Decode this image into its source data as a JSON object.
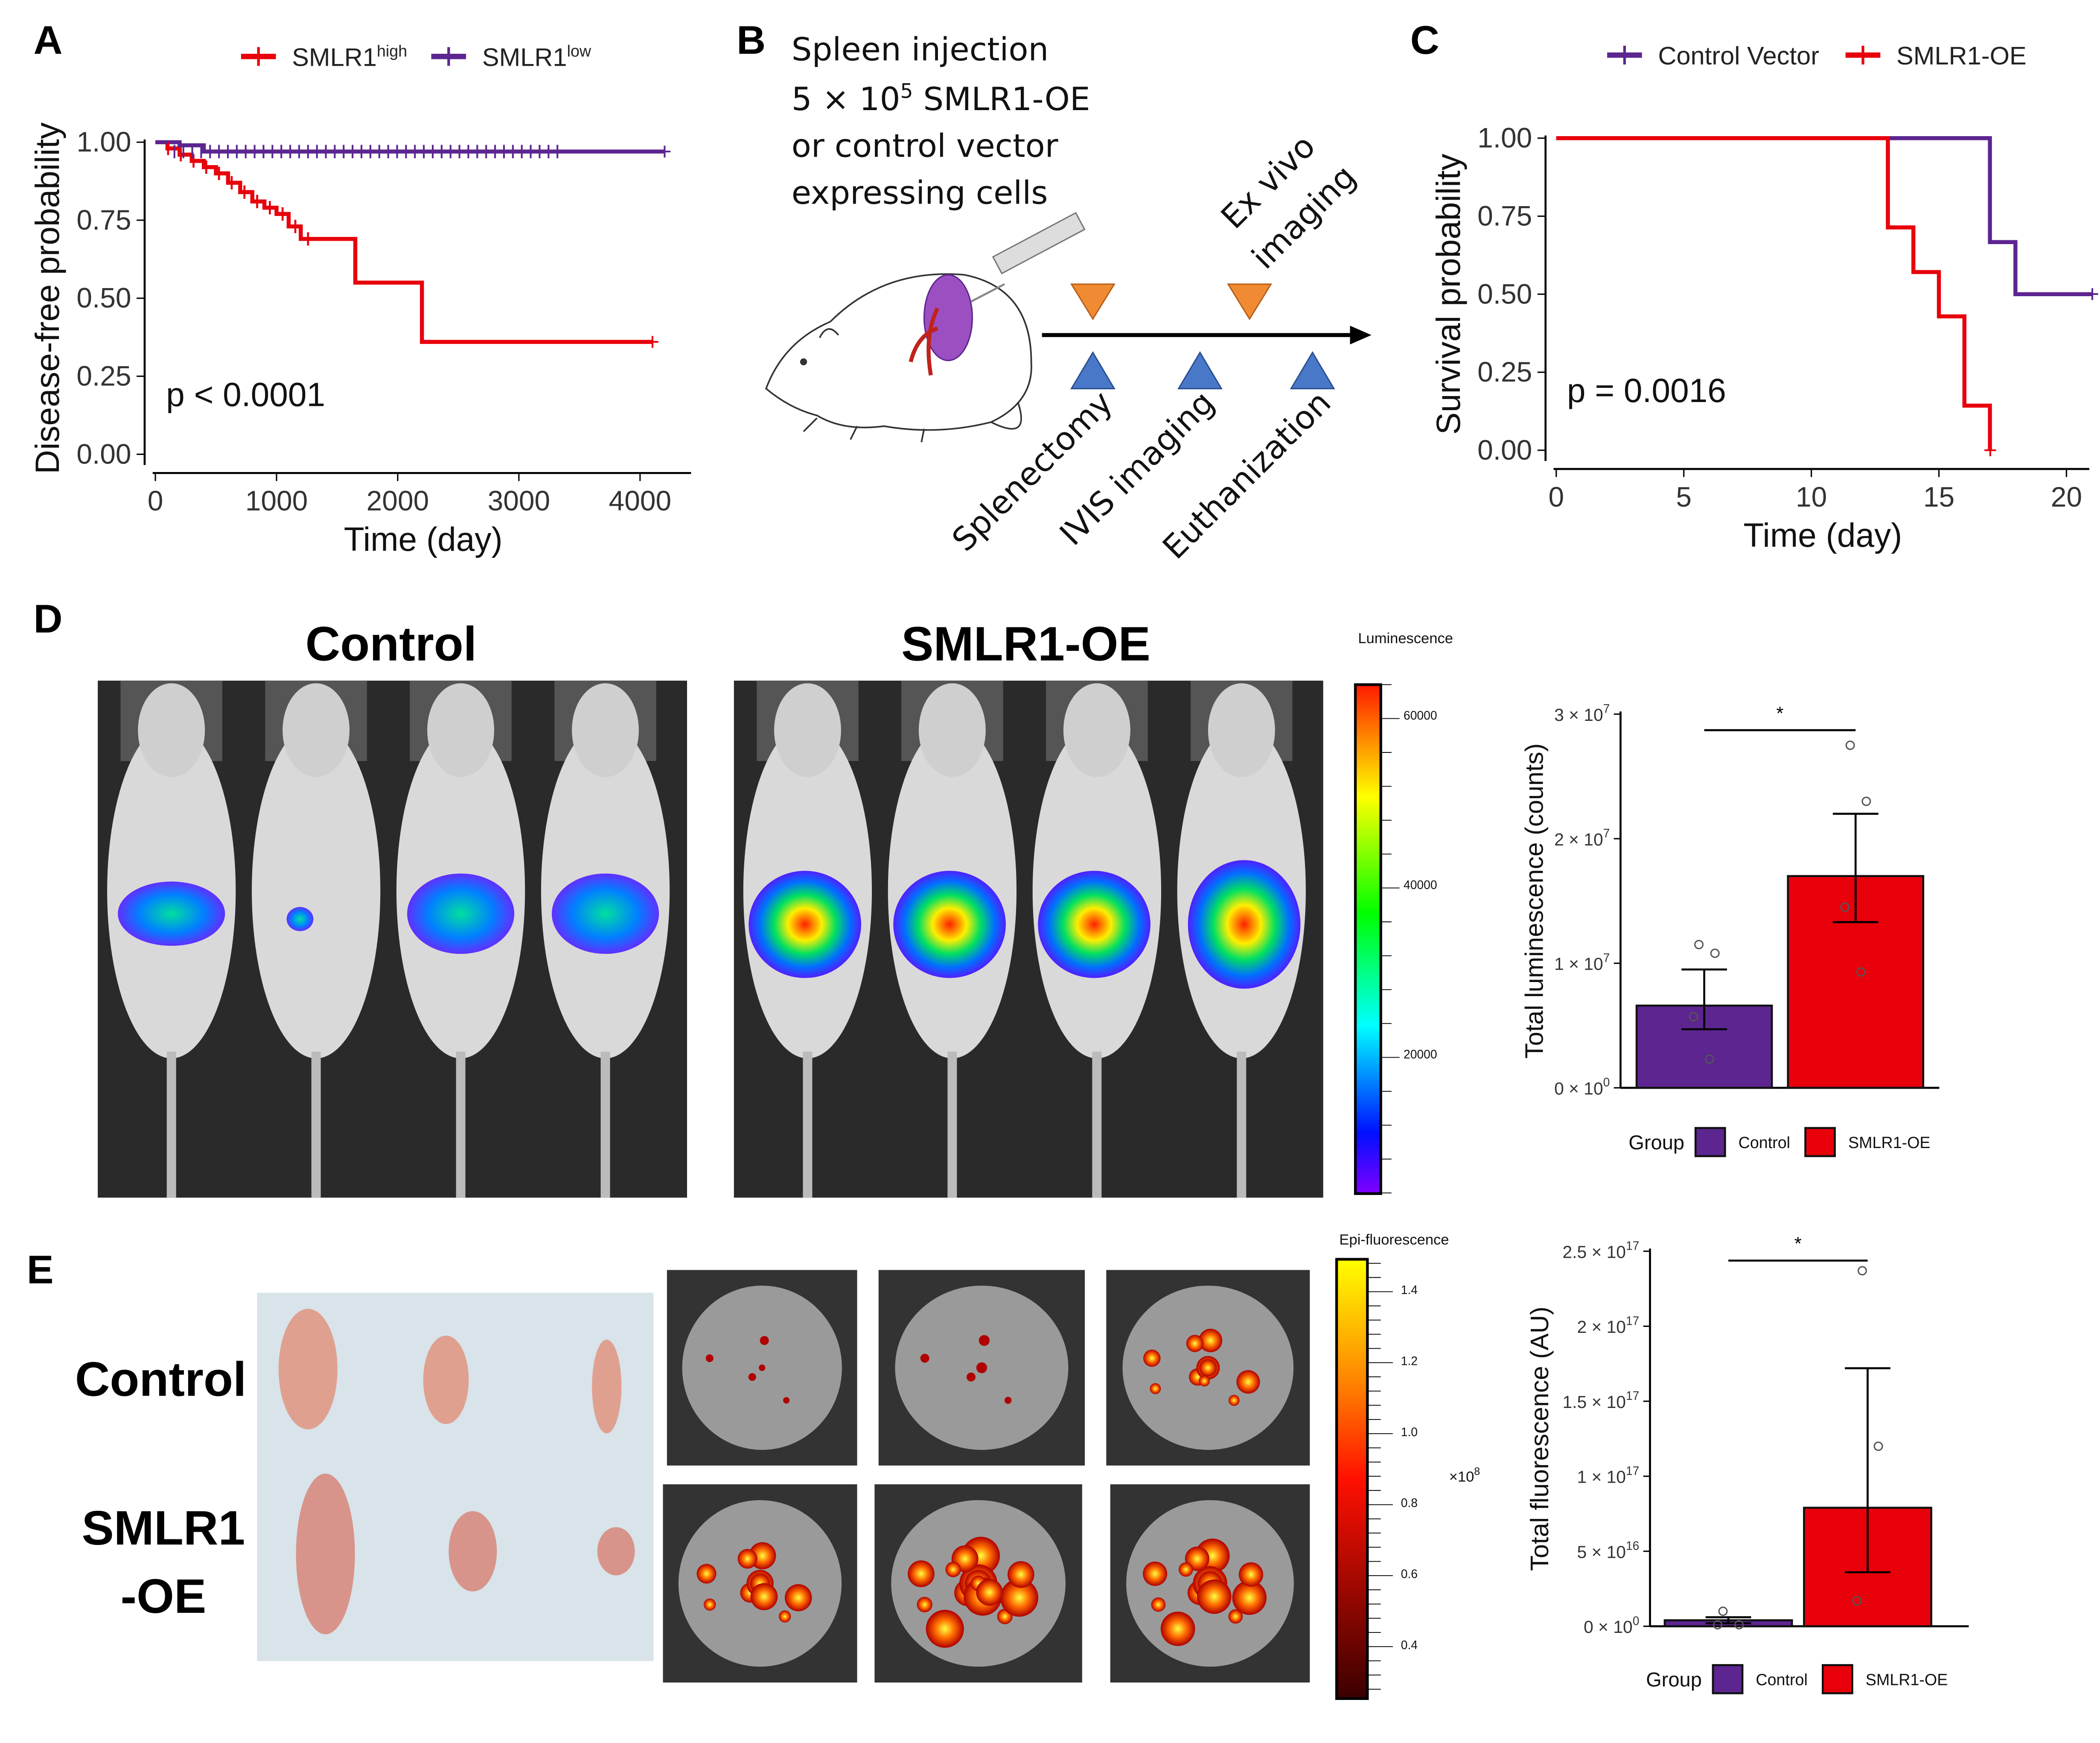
{
  "panels": {
    "a": "A",
    "b": "B",
    "c": "C",
    "d": "D",
    "e": "E"
  },
  "colors": {
    "red": "#e8000b",
    "purple": "#5c2590",
    "orange": "#f08a33",
    "blue": "#4a78c8"
  },
  "chart_data": [
    {
      "id": "A",
      "type": "line",
      "subtype": "kaplan-meier",
      "xlabel": "Time (day)",
      "ylabel": "Disease-free probability",
      "xticks": [
        "0",
        "1000",
        "2000",
        "3000",
        "4000"
      ],
      "yticks": [
        "0.00",
        "0.25",
        "0.50",
        "0.75",
        "1.00"
      ],
      "xlim": [
        0,
        4200
      ],
      "ylim": [
        0,
        1
      ],
      "annotation": "p < 0.0001",
      "legend_placement": "top",
      "series": [
        {
          "name": "SMLR1",
          "name_sup": "high",
          "color": "#e8000b",
          "points": [
            [
              0,
              1
            ],
            [
              100,
              0.98
            ],
            [
              200,
              0.96
            ],
            [
              300,
              0.94
            ],
            [
              400,
              0.92
            ],
            [
              500,
              0.9
            ],
            [
              600,
              0.87
            ],
            [
              700,
              0.84
            ],
            [
              800,
              0.81
            ],
            [
              900,
              0.79
            ],
            [
              1000,
              0.77
            ],
            [
              1100,
              0.73
            ],
            [
              1200,
              0.69
            ],
            [
              1650,
              0.55
            ],
            [
              2200,
              0.36
            ],
            [
              4100,
              0.36
            ]
          ]
        },
        {
          "name": "SMLR1",
          "name_sup": "low",
          "color": "#5c2590",
          "points": [
            [
              0,
              1
            ],
            [
              200,
              0.99
            ],
            [
              400,
              0.97
            ],
            [
              4200,
              0.97
            ]
          ]
        }
      ]
    },
    {
      "id": "C",
      "type": "line",
      "subtype": "kaplan-meier",
      "xlabel": "Time (day)",
      "ylabel": "Survival probability",
      "xticks": [
        "0",
        "5",
        "10",
        "15",
        "20"
      ],
      "yticks": [
        "0.00",
        "0.25",
        "0.50",
        "0.75",
        "1.00"
      ],
      "xlim": [
        0,
        21
      ],
      "ylim": [
        0,
        1
      ],
      "annotation": "p = 0.0016",
      "legend_placement": "top",
      "series": [
        {
          "name": "Control Vector",
          "color": "#5c2590",
          "points": [
            [
              0,
              1
            ],
            [
              17,
              0.667
            ],
            [
              18,
              0.5
            ],
            [
              21,
              0.5
            ]
          ]
        },
        {
          "name": "SMLR1-OE",
          "color": "#e8000b",
          "points": [
            [
              0,
              1
            ],
            [
              13,
              0.714
            ],
            [
              14,
              0.571
            ],
            [
              15,
              0.429
            ],
            [
              16,
              0.143
            ],
            [
              17,
              0
            ]
          ]
        }
      ]
    },
    {
      "id": "D",
      "type": "bar",
      "ylabel": "Total luminescence (counts)",
      "ylim": [
        0,
        30000000
      ],
      "yticks": [
        {
          "m": "0",
          "e": "0"
        },
        {
          "m": "1",
          "e": "7"
        },
        {
          "m": "2",
          "e": "7"
        },
        {
          "m": "3",
          "e": "7"
        }
      ],
      "significance": "*",
      "legend_title": "Group",
      "legend_placement": "bottom",
      "categories": [
        "Control",
        "SMLR1-OE"
      ],
      "colors": [
        "#5c2590",
        "#e8000b"
      ],
      "values": [
        6600000,
        17000000
      ],
      "se_low": [
        4700000,
        13300000
      ],
      "se_high": [
        9500000,
        22000000
      ],
      "points": [
        [
          11500000,
          10800000,
          5700000,
          2300000
        ],
        [
          27500000,
          23000000,
          14500000,
          9300000
        ]
      ]
    },
    {
      "id": "E",
      "type": "bar",
      "ylabel": "Total fluorescence (AU)",
      "ylim": [
        0,
        2.5e+17
      ],
      "yticks": [
        {
          "m": "0",
          "e": "0"
        },
        {
          "m": "5",
          "e": "16"
        },
        {
          "m": "1",
          "e": "17"
        },
        {
          "m": "1.5",
          "e": "17"
        },
        {
          "m": "2",
          "e": "17"
        },
        {
          "m": "2.5",
          "e": "17"
        }
      ],
      "significance": "*",
      "legend_title": "Group",
      "legend_placement": "bottom",
      "categories": [
        "Control",
        "SMLR1-OE"
      ],
      "colors": [
        "#5c2590",
        "#e8000b"
      ],
      "values": [
        4000000000000000.0,
        7.9e+16
      ],
      "se_low": [
        2000000000000000.0,
        3.6e+16
      ],
      "se_high": [
        6000000000000000.0,
        1.72e+17
      ],
      "points": [
        [
          1e+16,
          1000000000000000.0,
          1000000000000000.0
        ],
        [
          2.37e+17,
          1.2e+17,
          1.7e+16
        ]
      ]
    }
  ],
  "b": {
    "lines": [
      "Spleen injection",
      "or control vector",
      "expressing cells"
    ],
    "dose_pre": "5 × 10",
    "dose_sup": "5",
    "dose_post": " SMLR1-OE",
    "events": [
      "Splenectomy",
      "IVIS imaging",
      "Euthanization"
    ],
    "exvivo": [
      "Ex vivo",
      "imaging"
    ]
  },
  "d": {
    "control": "Control",
    "oe": "SMLR1-OE",
    "colorbar_label": "Luminescence",
    "colorbar_ticks": [
      "60000",
      "40000",
      "20000"
    ]
  },
  "e": {
    "control": "Control",
    "oe1": "SMLR1",
    "oe2": "-OE",
    "colorbar_label": "Epi-fluorescence",
    "colorbar_ticks": [
      "1.4",
      "1.2",
      "1.0",
      "0.8",
      "0.6",
      "0.4"
    ],
    "scale_pre": "×10",
    "scale_sup": "8"
  }
}
